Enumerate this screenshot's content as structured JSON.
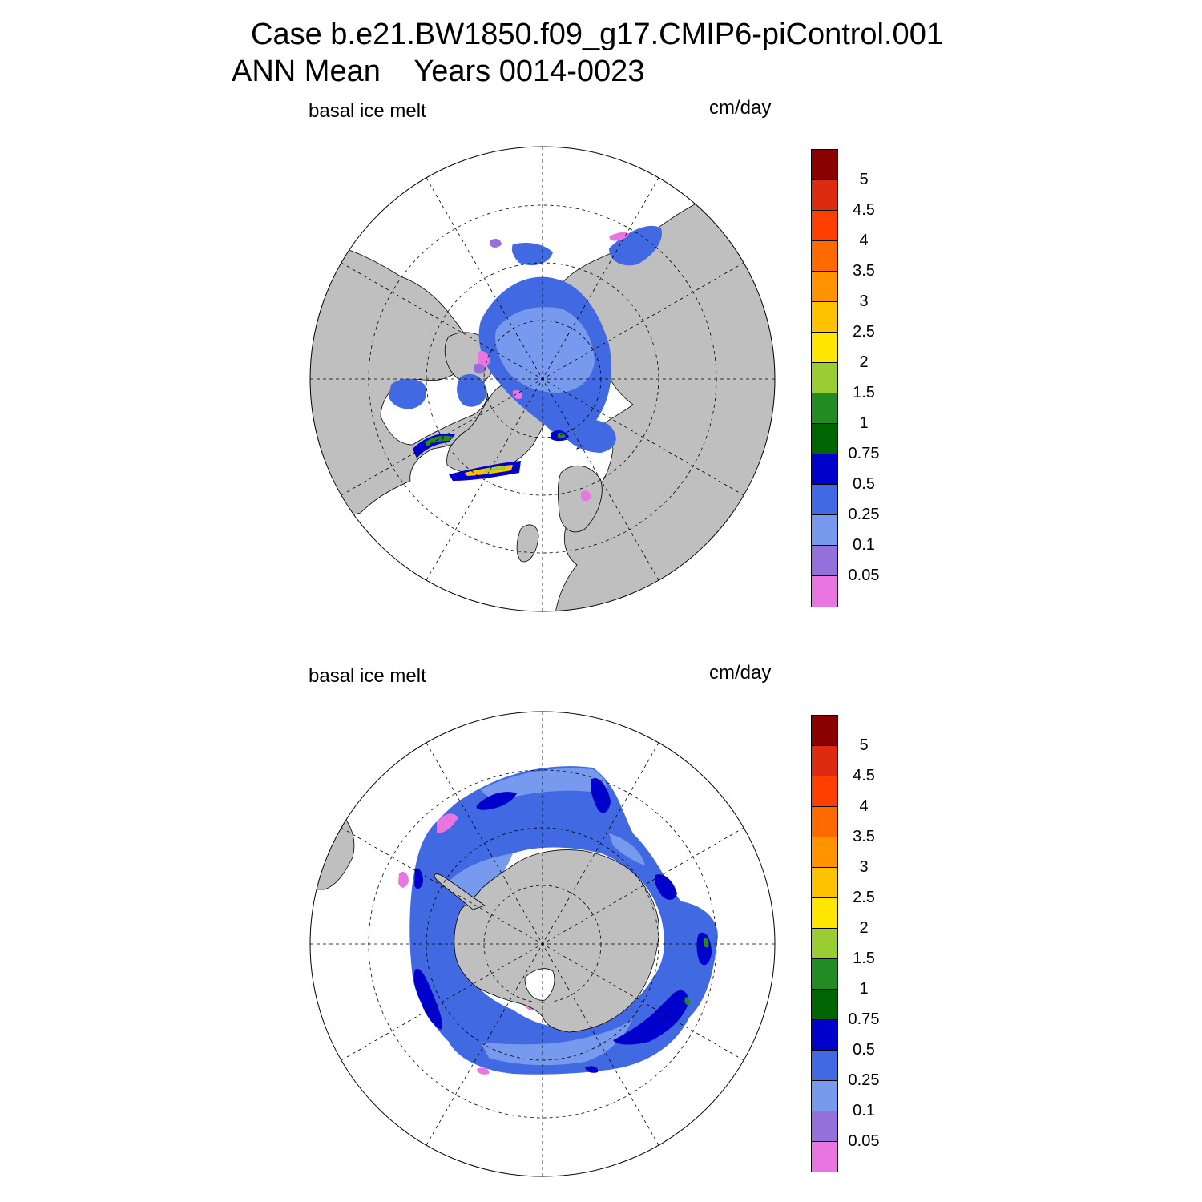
{
  "title": {
    "line1": "Case b.e21.BW1850.f09_g17.CMIP6-piControl.001",
    "line2": "ANN Mean    Years 0014-0023"
  },
  "panels": [
    {
      "id": "north",
      "hemisphere": "north",
      "left_label": "basal ice melt",
      "right_label": "cm/day"
    },
    {
      "id": "south",
      "hemisphere": "south",
      "left_label": "basal ice melt",
      "right_label": "cm/day"
    }
  ],
  "legend": {
    "units": "cm/day",
    "levels": [
      "5",
      "4.5",
      "4",
      "3.5",
      "3",
      "2.5",
      "2",
      "1.5",
      "1",
      "0.75",
      "0.5",
      "0.25",
      "0.1",
      "0.05"
    ],
    "colors": [
      "#8b0000",
      "#dd2b12",
      "#ff3f00",
      "#ff6a00",
      "#ff9400",
      "#ffc200",
      "#ffe600",
      "#9acd32",
      "#228b22",
      "#006400",
      "#0000cd",
      "#4169e1",
      "#7799ee",
      "#9370db",
      "#e875e0"
    ]
  },
  "palette": {
    "land": "#bfbfbf",
    "ocean": "#ffffff",
    "gridline": "#000000"
  }
}
